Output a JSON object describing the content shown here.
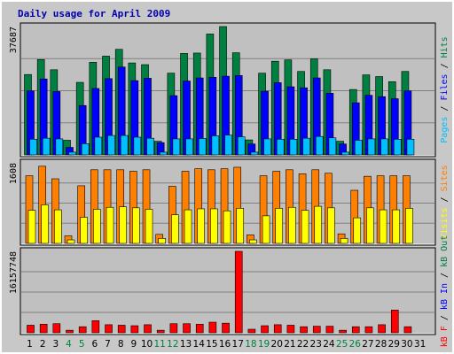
{
  "colors": {
    "pages": "#00C0FF",
    "files": "#0000FF",
    "hits": "#008040",
    "visits": "#FFFF00",
    "sites": "#FF8000",
    "kbf": "#FF0000",
    "kbin": "#0000FF",
    "kbout": "#008040",
    "weekday_label": "#000000",
    "weekend_label": "#008040",
    "title": "#0000B0",
    "plot_bg": "#C0C0C0",
    "frame_bg": "#C8C8C8"
  },
  "chart_data": {
    "type": "bar",
    "title": "Daily usage for April 2009",
    "days": [
      "1",
      "2",
      "3",
      "4",
      "5",
      "6",
      "7",
      "8",
      "9",
      "10",
      "11",
      "12",
      "13",
      "14",
      "15",
      "16",
      "17",
      "18",
      "19",
      "20",
      "21",
      "22",
      "23",
      "24",
      "25",
      "26",
      "27",
      "28",
      "29",
      "30",
      "31"
    ],
    "weekend_days": [
      "4",
      "5",
      "11",
      "12",
      "18",
      "19",
      "25",
      "26"
    ],
    "panels": [
      {
        "name": "hits-files-pages",
        "ymax_label": "37687",
        "ymax": 37687,
        "right_label": [
          {
            "text": "Pages",
            "color": "#00C0FF"
          },
          {
            "text": " / ",
            "color": "#000000"
          },
          {
            "text": "Files",
            "color": "#0000FF"
          },
          {
            "text": " / ",
            "color": "#000000"
          },
          {
            "text": "Hits",
            "color": "#008040"
          }
        ],
        "series": [
          {
            "name": "Hits",
            "color": "#008040",
            "values": [
              23600,
              28000,
              25000,
              4300,
              21300,
              27200,
              29000,
              31000,
              27000,
              26500,
              4000,
              24000,
              29800,
              29900,
              35500,
              38000,
              30000,
              4400,
              24000,
              27500,
              27900,
              24500,
              28200,
              25000,
              4000,
              19200,
              23500,
              23000,
              21500,
              24500,
              0
            ]
          },
          {
            "name": "Files",
            "color": "#0000FF",
            "values": [
              18800,
              22300,
              18600,
              2200,
              14500,
              19500,
              22400,
              25800,
              21800,
              22500,
              3600,
              17400,
              21700,
              22600,
              22800,
              23100,
              23300,
              3200,
              18700,
              21200,
              20000,
              19700,
              22600,
              18100,
              3200,
              15300,
              17500,
              17100,
              16500,
              18800,
              0
            ]
          },
          {
            "name": "Pages",
            "color": "#00C0FF",
            "values": [
              4600,
              4900,
              4700,
              800,
              3300,
              5200,
              5700,
              5700,
              5200,
              4900,
              800,
              4700,
              4700,
              4800,
              5600,
              5800,
              5300,
              800,
              4700,
              4600,
              4600,
              4900,
              5400,
              5000,
              800,
              4300,
              4700,
              4700,
              4600,
              4600,
              0
            ]
          }
        ]
      },
      {
        "name": "visits-sites",
        "ymax_label": "1608",
        "ymax": 1608,
        "right_label": [
          {
            "text": "Visits",
            "color": "#FFFF00"
          },
          {
            "text": " / ",
            "color": "#000000"
          },
          {
            "text": "Sites",
            "color": "#FF8000"
          }
        ],
        "series": [
          {
            "name": "Sites",
            "color": "#FF8000",
            "values": [
              1350,
              1540,
              1290,
              150,
              1150,
              1470,
              1470,
              1470,
              1440,
              1470,
              180,
              1140,
              1440,
              1490,
              1470,
              1490,
              1520,
              170,
              1350,
              1440,
              1470,
              1390,
              1470,
              1400,
              190,
              1060,
              1340,
              1350,
              1350,
              1350,
              0
            ]
          },
          {
            "name": "Visits",
            "color": "#FFFF00",
            "values": [
              660,
              770,
              670,
              70,
              520,
              680,
              720,
              730,
              710,
              680,
              100,
              570,
              670,
              690,
              690,
              650,
              700,
              70,
              550,
              700,
              720,
              660,
              740,
              710,
              100,
              510,
              710,
              670,
              670,
              700,
              0
            ]
          }
        ]
      },
      {
        "name": "kbf-kbin-kbout",
        "ymax_label": "16157748",
        "ymax": 16157748,
        "right_label": [
          {
            "text": "kB F",
            "color": "#FF0000"
          },
          {
            "text": " / ",
            "color": "#000000"
          },
          {
            "text": "kB In",
            "color": "#0000FF"
          },
          {
            "text": " / ",
            "color": "#000000"
          },
          {
            "text": "kB Out",
            "color": "#008040"
          }
        ],
        "series": [
          {
            "name": "kB F",
            "color": "#FF0000",
            "values": [
              1500000,
              1700000,
              1800000,
              500000,
              1200000,
              2400000,
              1600000,
              1500000,
              1400000,
              1600000,
              500000,
              1800000,
              1800000,
              1700000,
              2100000,
              1900000,
              16157748,
              700000,
              1400000,
              1600000,
              1500000,
              1200000,
              1300000,
              1300000,
              500000,
              1200000,
              1200000,
              1600000,
              4500000,
              1200000,
              0
            ]
          }
        ]
      }
    ]
  }
}
